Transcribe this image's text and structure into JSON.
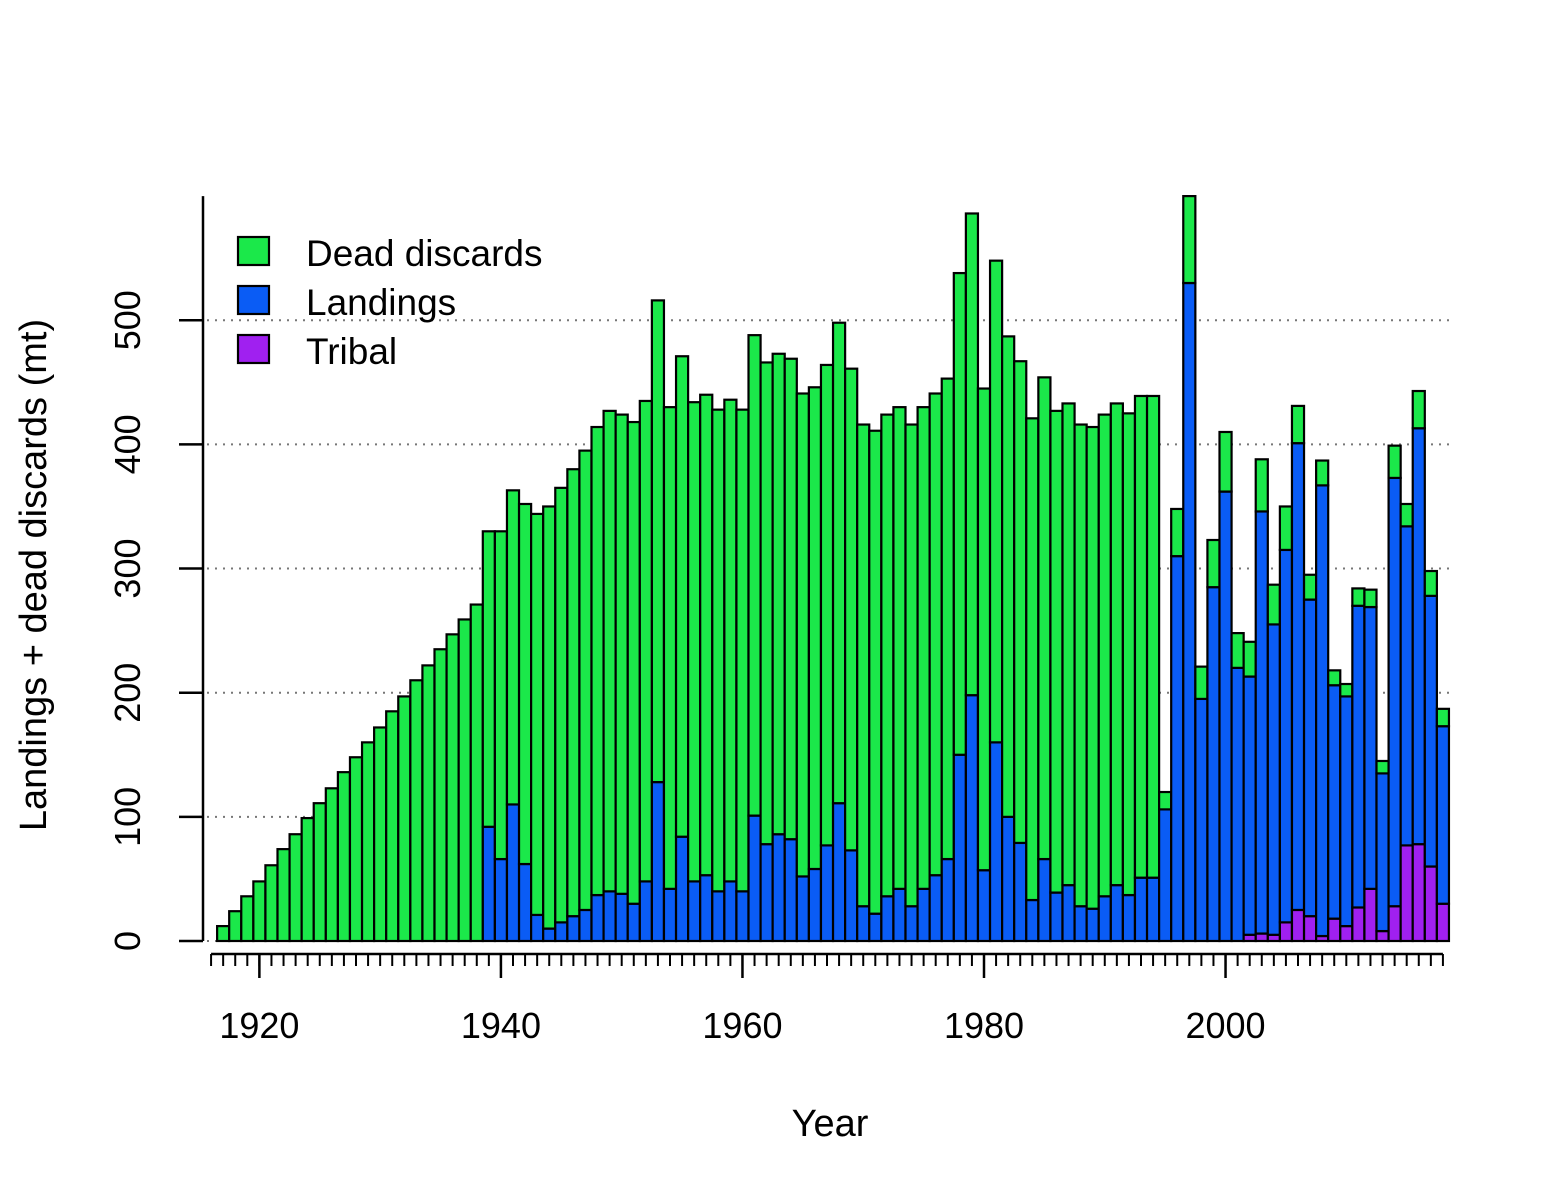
{
  "chart_data": {
    "type": "bar",
    "stacked": true,
    "xlabel": "Year",
    "ylabel": "Landings + dead discards (mt)",
    "xlim": [
      1915,
      2019
    ],
    "ylim": [
      0,
      600
    ],
    "x_ticks": [
      1920,
      1940,
      1960,
      1980,
      2000
    ],
    "y_ticks": [
      0,
      100,
      200,
      300,
      400,
      500
    ],
    "grid": "horizontal dotted",
    "legend_position": "top-left",
    "years": [
      1916,
      1917,
      1918,
      1919,
      1920,
      1921,
      1922,
      1923,
      1924,
      1925,
      1926,
      1927,
      1928,
      1929,
      1930,
      1931,
      1932,
      1933,
      1934,
      1935,
      1936,
      1937,
      1938,
      1939,
      1940,
      1941,
      1942,
      1943,
      1944,
      1945,
      1946,
      1947,
      1948,
      1949,
      1950,
      1951,
      1952,
      1953,
      1954,
      1955,
      1956,
      1957,
      1958,
      1959,
      1960,
      1961,
      1962,
      1963,
      1964,
      1965,
      1966,
      1967,
      1968,
      1969,
      1970,
      1971,
      1972,
      1973,
      1974,
      1975,
      1976,
      1977,
      1978,
      1979,
      1980,
      1981,
      1982,
      1983,
      1984,
      1985,
      1986,
      1987,
      1988,
      1989,
      1990,
      1991,
      1992,
      1993,
      1994,
      1995,
      1996,
      1997,
      1998,
      1999,
      2000,
      2001,
      2002,
      2003,
      2004,
      2005,
      2006,
      2007,
      2008,
      2009,
      2010,
      2011,
      2012,
      2013,
      2014,
      2015,
      2016,
      2017,
      2018
    ],
    "series": [
      {
        "name": "Tribal",
        "color": "#a020f0",
        "values": [
          0,
          0,
          0,
          0,
          0,
          0,
          0,
          0,
          0,
          0,
          0,
          0,
          0,
          0,
          0,
          0,
          0,
          0,
          0,
          0,
          0,
          0,
          0,
          0,
          0,
          0,
          0,
          0,
          0,
          0,
          0,
          0,
          0,
          0,
          0,
          0,
          0,
          0,
          0,
          0,
          0,
          0,
          0,
          0,
          0,
          0,
          0,
          0,
          0,
          0,
          0,
          0,
          0,
          0,
          0,
          0,
          0,
          0,
          0,
          0,
          0,
          0,
          0,
          0,
          0,
          0,
          0,
          0,
          0,
          0,
          0,
          0,
          0,
          0,
          0,
          0,
          0,
          0,
          0,
          0,
          0,
          0,
          0,
          0,
          0,
          0,
          5,
          6,
          5,
          15,
          25,
          20,
          4,
          18,
          12,
          27,
          42,
          8,
          28,
          77,
          78,
          60,
          30
        ]
      },
      {
        "name": "Landings",
        "color": "#0a5cf5",
        "values": [
          0,
          0,
          0,
          0,
          0,
          0,
          0,
          0,
          0,
          0,
          0,
          0,
          0,
          0,
          0,
          0,
          0,
          0,
          0,
          0,
          0,
          0,
          0,
          92,
          66,
          110,
          62,
          21,
          10,
          15,
          20,
          25,
          37,
          40,
          38,
          30,
          48,
          128,
          42,
          84,
          48,
          53,
          40,
          48,
          40,
          101,
          78,
          86,
          82,
          52,
          58,
          77,
          111,
          73,
          28,
          22,
          36,
          42,
          28,
          42,
          53,
          66,
          150,
          198,
          57,
          160,
          100,
          79,
          33,
          66,
          39,
          45,
          28,
          26,
          36,
          45,
          37,
          51,
          51,
          106,
          310,
          530,
          195,
          285,
          362,
          220,
          208,
          340,
          250,
          300,
          376,
          255,
          363,
          188,
          185,
          243,
          227,
          127,
          345,
          257,
          335,
          218,
          143
        ]
      },
      {
        "name": "Dead discards",
        "color": "#1be84a",
        "values": [
          0,
          12,
          24,
          36,
          48,
          61,
          74,
          86,
          99,
          111,
          123,
          136,
          148,
          160,
          172,
          185,
          197,
          210,
          222,
          235,
          247,
          259,
          271,
          238,
          264,
          253,
          290,
          323,
          340,
          350,
          360,
          370,
          377,
          387,
          386,
          388,
          387,
          388,
          388,
          387,
          386,
          387,
          388,
          388,
          388,
          387,
          388,
          387,
          387,
          389,
          388,
          387,
          387,
          388,
          388,
          389,
          388,
          388,
          388,
          388,
          388,
          387,
          388,
          388,
          388,
          388,
          387,
          388,
          388,
          388,
          388,
          388,
          388,
          388,
          388,
          388,
          388,
          388,
          388,
          14,
          38,
          70,
          26,
          38,
          48,
          28,
          28,
          42,
          32,
          35,
          30,
          20,
          20,
          12,
          10,
          14,
          14,
          10,
          26,
          18,
          30,
          20,
          14
        ]
      }
    ]
  }
}
